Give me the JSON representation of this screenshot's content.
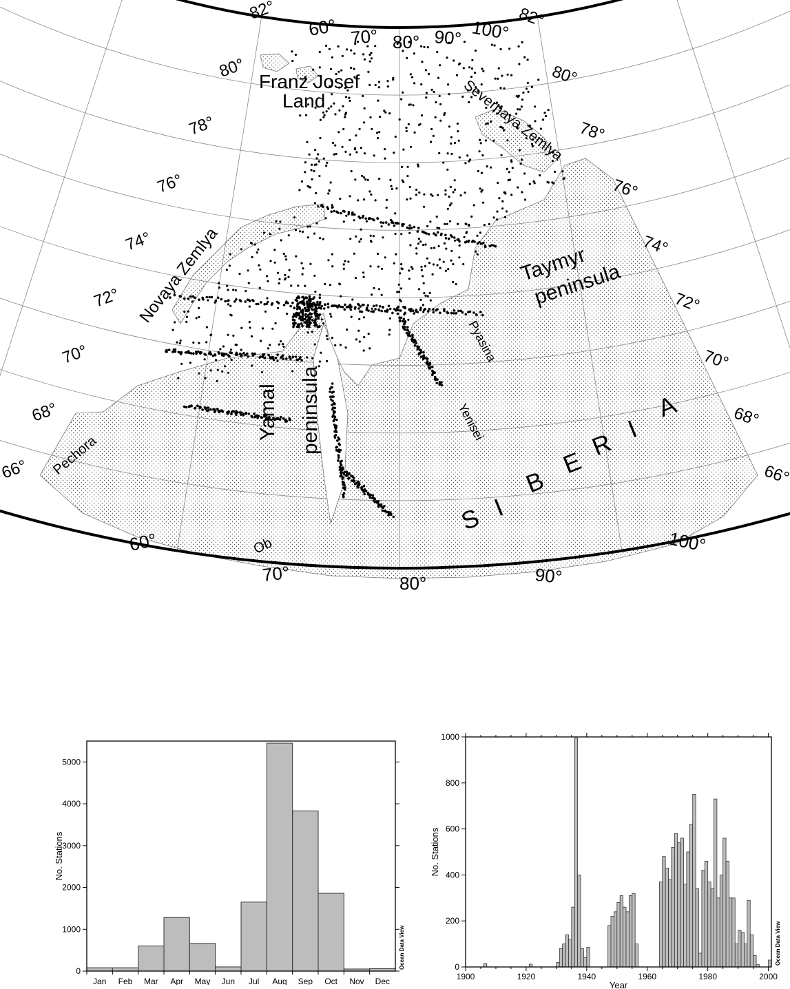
{
  "map": {
    "lat_labels": [
      "82°",
      "80°",
      "78°",
      "76°",
      "74°",
      "72°",
      "70°",
      "68°",
      "66°"
    ],
    "lon_labels": [
      "60°",
      "70°",
      "80°",
      "90°",
      "100°"
    ],
    "place_labels": {
      "franz_josef_1": "Franz Josef",
      "franz_josef_2": "Land",
      "severnaya": "Severnaya Zemlya",
      "novaya": "Novaya Zemlya",
      "taymyr_1": "Taymyr",
      "taymyr_2": "peninsula",
      "yamal_1": "Yamal",
      "yamal_2": "peninsula",
      "pyasina": "Pyasina",
      "yenisei": "Yenisei",
      "pechora": "Pechora",
      "ob": "Ob",
      "siberia_letters": [
        "S",
        "I",
        "B",
        "E",
        "R",
        "I",
        "A"
      ]
    }
  },
  "chart_data": [
    {
      "type": "bar",
      "categories": [
        "Jan",
        "Feb",
        "Mar",
        "Apr",
        "May",
        "Jun",
        "Jul",
        "Aug",
        "Sep",
        "Oct",
        "Nov",
        "Dec"
      ],
      "values": [
        80,
        80,
        600,
        1280,
        660,
        100,
        1650,
        5450,
        3830,
        1860,
        50,
        60
      ],
      "ylabel": "No. Stations",
      "ylim": [
        0,
        5500
      ],
      "yticks": [
        0,
        1000,
        2000,
        3000,
        4000,
        5000
      ],
      "watermark": "Ocean Data View",
      "fill_color": "#bdbdbd"
    },
    {
      "type": "bar",
      "xlabel": "Year",
      "ylabel": "No. Stations",
      "xlim": [
        1900,
        2001
      ],
      "ylim": [
        0,
        1000
      ],
      "xticks": [
        1900,
        1920,
        1940,
        1960,
        1980,
        2000
      ],
      "yticks": [
        0,
        200,
        400,
        600,
        800,
        1000
      ],
      "watermark": "Ocean Data View",
      "fill_color": "#bdbdbd",
      "years": [
        1906,
        1921,
        1930,
        1931,
        1932,
        1933,
        1934,
        1935,
        1936,
        1937,
        1938,
        1939,
        1940,
        1947,
        1948,
        1949,
        1950,
        1951,
        1952,
        1953,
        1954,
        1955,
        1956,
        1964,
        1965,
        1966,
        1967,
        1968,
        1969,
        1970,
        1971,
        1972,
        1973,
        1974,
        1975,
        1976,
        1977,
        1978,
        1979,
        1980,
        1981,
        1982,
        1983,
        1984,
        1985,
        1986,
        1987,
        1988,
        1989,
        1990,
        1991,
        1992,
        1993,
        1994,
        1995,
        1996,
        2000
      ],
      "values": [
        15,
        12,
        20,
        80,
        100,
        140,
        120,
        260,
        995,
        400,
        80,
        40,
        85,
        180,
        220,
        240,
        280,
        310,
        260,
        240,
        310,
        320,
        100,
        370,
        480,
        430,
        380,
        520,
        580,
        540,
        560,
        360,
        500,
        620,
        750,
        340,
        60,
        420,
        460,
        370,
        340,
        730,
        300,
        400,
        560,
        460,
        300,
        300,
        100,
        160,
        150,
        100,
        290,
        140,
        50,
        10,
        30
      ]
    }
  ]
}
